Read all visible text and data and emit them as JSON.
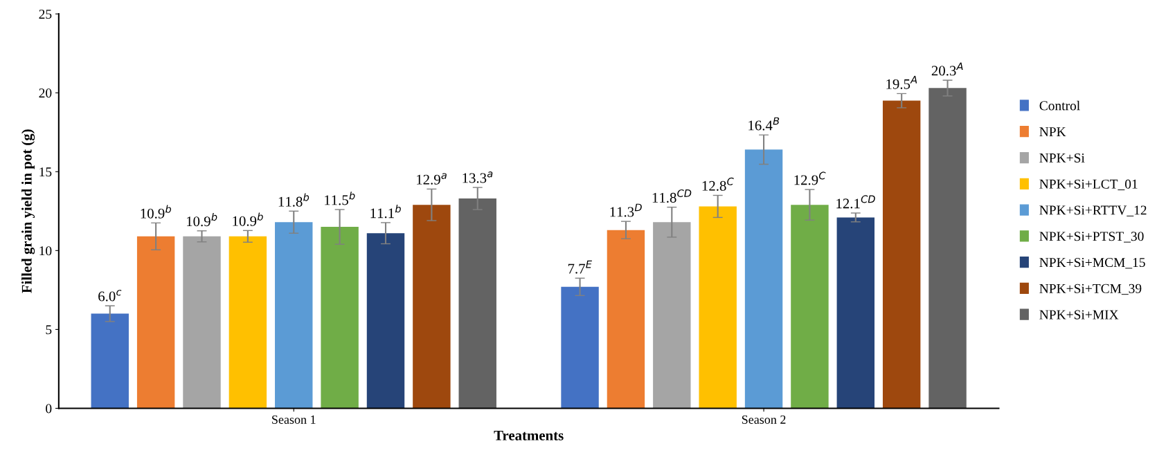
{
  "chart_data": {
    "type": "bar",
    "xlabel": "Treatments",
    "ylabel": "Filled grain yield in pot (g)",
    "categories": [
      "Season 1",
      "Season 2"
    ],
    "ylim": [
      0,
      25
    ],
    "yticks": [
      0,
      5,
      10,
      15,
      20,
      25
    ],
    "grid": false,
    "legend": "right",
    "series": [
      {
        "name": "Control",
        "color": "#4472c4",
        "values": [
          6.0,
          7.7
        ],
        "errors": [
          0.5,
          0.55
        ],
        "value_labels": [
          "6.0$^{c}$",
          "7.7$^{E}$"
        ]
      },
      {
        "name": "NPK",
        "color": "#ed7d31",
        "values": [
          10.9,
          11.3
        ],
        "errors": [
          0.85,
          0.55
        ],
        "value_labels": [
          "10.9$^{b}$",
          "11.3$^{D}$"
        ]
      },
      {
        "name": "NPK+Si",
        "color": "#a5a5a5",
        "values": [
          10.9,
          11.8
        ],
        "errors": [
          0.35,
          0.95
        ],
        "value_labels": [
          "10.9$^{b}$",
          "11.8$^{CD}$"
        ]
      },
      {
        "name": "NPK+Si+LCT_01",
        "color": "#ffc000",
        "values": [
          10.9,
          12.8
        ],
        "errors": [
          0.37,
          0.7
        ],
        "value_labels": [
          "10.9$^{b}$",
          "12.8$^{C}$"
        ]
      },
      {
        "name": "NPK+Si+RTTV_12",
        "color": "#5b9bd5",
        "values": [
          11.8,
          16.4
        ],
        "errors": [
          0.7,
          0.93
        ],
        "value_labels": [
          "11.8$^{b}$",
          "16.4$^{B}$"
        ]
      },
      {
        "name": "NPK+Si+PTST_30",
        "color": "#70ad47",
        "values": [
          11.5,
          12.9
        ],
        "errors": [
          1.1,
          0.97
        ],
        "value_labels": [
          "11.5$^{b}$",
          "12.9$^{C}$"
        ]
      },
      {
        "name": "NPK+Si+MCM_15",
        "color": "#264478",
        "values": [
          11.1,
          12.1
        ],
        "errors": [
          0.67,
          0.28
        ],
        "value_labels": [
          "11.1$^{b}$",
          "12.1$^{CD}$"
        ]
      },
      {
        "name": "NPK+Si+TCM_39",
        "color": "#9e480e",
        "values": [
          12.9,
          19.5
        ],
        "errors": [
          1.0,
          0.45
        ],
        "value_labels": [
          "12.9$^{a}$",
          "19.5$^{A}$"
        ]
      },
      {
        "name": "NPK+Si+MIX",
        "color": "#636363",
        "values": [
          13.3,
          20.3
        ],
        "errors": [
          0.7,
          0.5
        ],
        "value_labels": [
          "13.3$^{a}$",
          "20.3$^{A}$"
        ]
      }
    ]
  }
}
